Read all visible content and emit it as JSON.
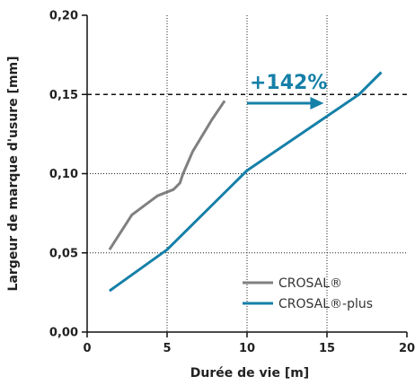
{
  "chart_data": {
    "type": "line",
    "xlabel": "Durée de vie [m]",
    "ylabel": "Largeur de marque d'usure [mm]",
    "xlim": [
      0,
      20
    ],
    "ylim": [
      0,
      0.2
    ],
    "x_ticks": [
      0,
      5,
      10,
      15,
      20
    ],
    "x_tick_labels": [
      "0",
      "5",
      "10",
      "15",
      "20"
    ],
    "y_ticks": [
      0,
      0.05,
      0.1,
      0.15,
      0.2
    ],
    "y_tick_labels": [
      "0,00",
      "0,05",
      "0,10",
      "0,15",
      "0,20"
    ],
    "grid": "dotted",
    "legend": "bottom-right",
    "series": [
      {
        "name": "CROSAL®",
        "color": "#808080",
        "x": [
          1.4,
          2.8,
          4.4,
          5.4,
          5.8,
          6.0,
          6.6,
          7.8,
          8.6
        ],
        "y": [
          0.052,
          0.074,
          0.086,
          0.09,
          0.094,
          0.1,
          0.114,
          0.134,
          0.146
        ]
      },
      {
        "name": "CROSAL®-plus",
        "color": "#1680a8",
        "x": [
          1.4,
          5.0,
          10.0,
          17.0,
          18.4
        ],
        "y": [
          0.026,
          0.052,
          0.102,
          0.15,
          0.164
        ]
      }
    ],
    "reference_line": {
      "y": 0.15,
      "style": "dashed"
    },
    "annotation": {
      "text": "+142%",
      "color": "#1680a8",
      "arrow_from_x": 10.0,
      "arrow_to_x": 14.8,
      "y": 0.1445
    }
  }
}
